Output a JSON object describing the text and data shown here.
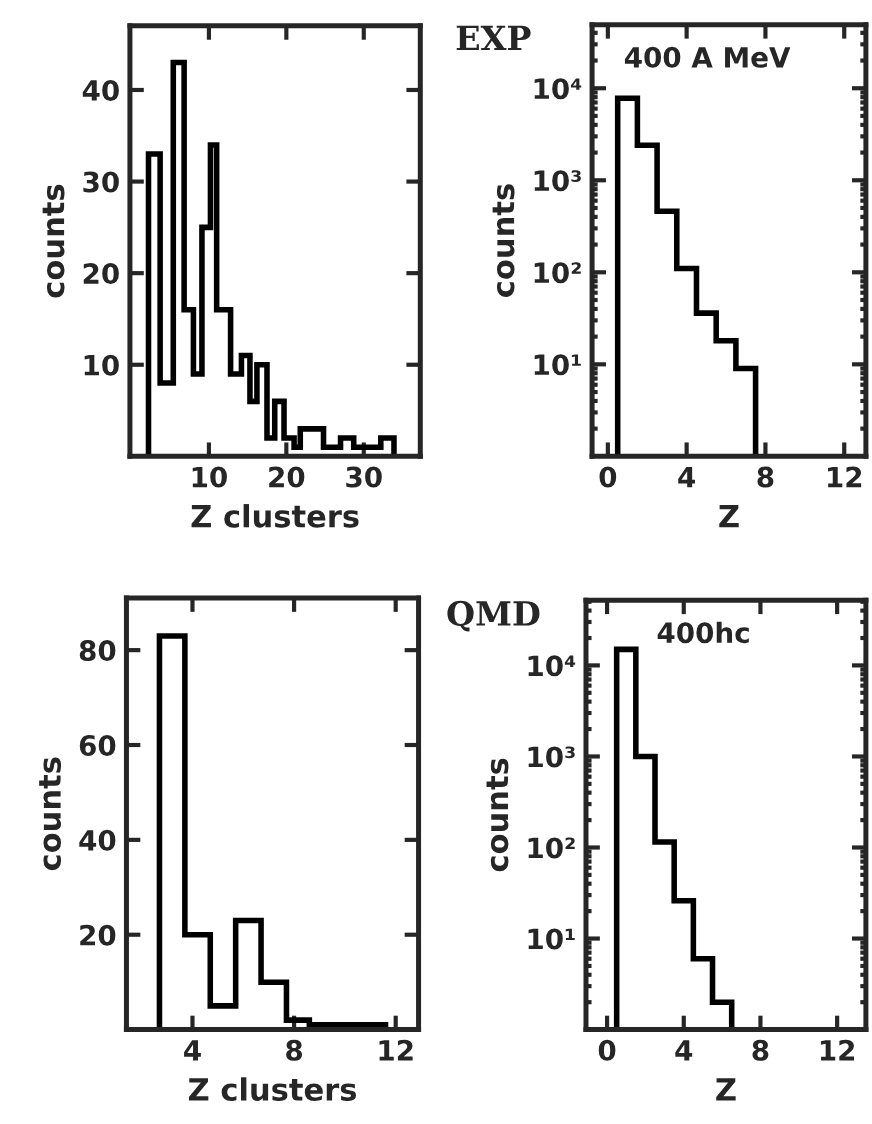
{
  "chart_data": [
    {
      "type": "histogram",
      "xlabel": "Z clusters",
      "ylabel": "counts",
      "color": "#000000",
      "bins": [
        2.2,
        3.7,
        5.4,
        6.8,
        8.0,
        9.1,
        10.2,
        11.0,
        12.8,
        14.2,
        15.3,
        16.2,
        17.5,
        18.5,
        19.7,
        21.0,
        21.8,
        23.5,
        24.8,
        27.0,
        28.7,
        30.4,
        32.2,
        33.9
      ],
      "values": [
        33,
        8,
        43,
        16,
        9,
        25,
        34,
        16,
        9,
        11,
        6,
        10,
        2,
        6,
        2,
        1,
        3,
        3,
        1,
        2,
        1,
        1,
        2
      ],
      "xlim": [
        -0.2,
        37.3
      ],
      "ylim": [
        0,
        47
      ],
      "xticks": [
        10,
        20,
        30
      ],
      "yticks": [
        10,
        20,
        30,
        40
      ]
    },
    {
      "type": "histogram",
      "title": "EXP",
      "xlabel": "Z",
      "ylabel": "counts",
      "color": "#000000",
      "log": "y",
      "bins": [
        0.5,
        1.5,
        2.5,
        3.5,
        4.5,
        5.5,
        6.5,
        7.5
      ],
      "values": [
        7800,
        2400,
        460,
        110,
        36,
        18,
        9
      ],
      "xlim": [
        -0.8,
        13.1
      ],
      "ylim": [
        1,
        49000
      ],
      "xticks": [
        0,
        4,
        8,
        12
      ],
      "yticks": [
        {
          "value": 10,
          "label": "10¹"
        },
        {
          "value": 100,
          "label": "10²"
        },
        {
          "value": 1000,
          "label": "10³"
        },
        {
          "value": 10000,
          "label": "10⁴"
        }
      ],
      "annotations": [
        "400 A MeV"
      ]
    },
    {
      "type": "histogram",
      "xlabel": "Z clusters",
      "ylabel": "counts",
      "color": "#000000",
      "bins": [
        2.7,
        3.7,
        4.7,
        5.7,
        6.7,
        7.7,
        8.6,
        9.6,
        10.6,
        11.6
      ],
      "values": [
        83,
        20,
        5,
        23,
        10,
        2,
        1,
        1,
        1
      ],
      "xlim": [
        1.4,
        12.9
      ],
      "ylim": [
        0,
        91
      ],
      "xticks": [
        4,
        8,
        12
      ],
      "yticks": [
        20,
        40,
        60,
        80
      ]
    },
    {
      "type": "histogram",
      "title": "QMD",
      "xlabel": "Z",
      "ylabel": "counts",
      "color": "#000000",
      "log": "y",
      "bins": [
        0.5,
        1.5,
        2.5,
        3.5,
        4.5,
        5.5,
        6.5
      ],
      "values": [
        15000,
        1000,
        115,
        26,
        6,
        2
      ],
      "xlim": [
        -1.1,
        13.5
      ],
      "ylim": [
        1,
        52000
      ],
      "xticks": [
        0,
        4,
        8,
        12
      ],
      "yticks": [
        {
          "value": 10,
          "label": "10¹"
        },
        {
          "value": 100,
          "label": "10²"
        },
        {
          "value": 1000,
          "label": "10³"
        },
        {
          "value": 10000,
          "label": "10⁴"
        }
      ],
      "annotations": [
        "400hc"
      ]
    }
  ]
}
